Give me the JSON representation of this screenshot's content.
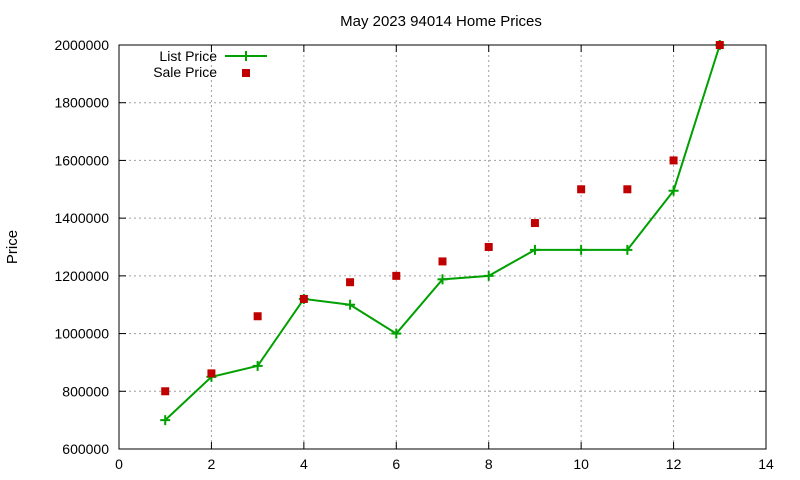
{
  "chart_data": {
    "type": "line",
    "title": "May 2023 94014 Home Prices",
    "xlabel": "",
    "ylabel": "Price",
    "xlim": [
      0,
      14
    ],
    "ylim": [
      600000,
      2000000
    ],
    "x_ticks": [
      0,
      2,
      4,
      6,
      8,
      10,
      12,
      14
    ],
    "y_ticks": [
      600000,
      800000,
      1000000,
      1200000,
      1400000,
      1600000,
      1800000,
      2000000
    ],
    "grid": true,
    "legend_position": "top-left",
    "series": [
      {
        "name": "List Price",
        "style": "line-with-plus-markers",
        "color": "#00a000",
        "x": [
          1,
          2,
          3,
          4,
          5,
          6,
          7,
          8,
          9,
          10,
          11,
          12,
          13
        ],
        "values": [
          700000,
          850000,
          888000,
          1120000,
          1100000,
          1000000,
          1188000,
          1200000,
          1290000,
          1290000,
          1290000,
          1495000,
          2000000
        ]
      },
      {
        "name": "Sale Price",
        "style": "square-markers",
        "color": "#c00000",
        "x": [
          1,
          2,
          3,
          4,
          5,
          6,
          7,
          8,
          9,
          10,
          11,
          12,
          13
        ],
        "values": [
          800000,
          862000,
          1060000,
          1120000,
          1178000,
          1200000,
          1250000,
          1300000,
          1383000,
          1500000,
          1500000,
          1600000,
          2000000
        ]
      }
    ]
  }
}
